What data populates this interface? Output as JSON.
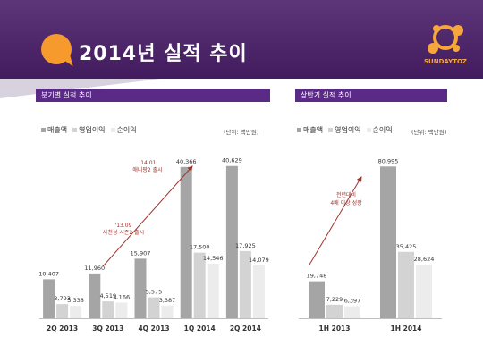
{
  "page": {
    "title": "2014년 실적 추이"
  },
  "logo": {
    "text": "SUNDAYTOZ"
  },
  "colors": {
    "revenue": "#a5a5a5",
    "operating": "#d3d3d3",
    "net": "#ececec",
    "header": "#4a1f6a",
    "accent": "#f79a2e",
    "arrow": "#a0322a"
  },
  "legend": {
    "revenue": "매출액",
    "operating": "영업이익",
    "net": "순이익"
  },
  "chart_data": [
    {
      "type": "bar",
      "title": "분기별 실적 추이",
      "unit": "(단위: 백만원)",
      "categories": [
        "2Q 2013",
        "3Q 2013",
        "4Q 2013",
        "1Q 2014",
        "2Q 2014"
      ],
      "series": [
        {
          "name": "매출액",
          "values": [
            10407,
            11960,
            15907,
            40366,
            40629
          ]
        },
        {
          "name": "영업이익",
          "values": [
            3793,
            4519,
            5575,
            17500,
            17925
          ]
        },
        {
          "name": "순이익",
          "values": [
            3338,
            4166,
            3387,
            14546,
            14079
          ]
        }
      ],
      "ylim": [
        0,
        42000
      ],
      "annotations": [
        {
          "date": "'13.09",
          "text": "사천성 시즌2 출시"
        },
        {
          "date": "'14.01",
          "text": "애니팡2 출시"
        }
      ]
    },
    {
      "type": "bar",
      "title": "상반기 실적 추이",
      "unit": "(단위: 백만원)",
      "categories": [
        "1H 2013",
        "1H 2014"
      ],
      "series": [
        {
          "name": "매출액",
          "values": [
            19748,
            80995
          ]
        },
        {
          "name": "영업이익",
          "values": [
            7229,
            35425
          ]
        },
        {
          "name": "순이익",
          "values": [
            6397,
            28624
          ]
        }
      ],
      "ylim": [
        0,
        84000
      ],
      "annotations": [
        {
          "date": "전년대비",
          "text": "4배 이상 성장"
        }
      ]
    }
  ]
}
